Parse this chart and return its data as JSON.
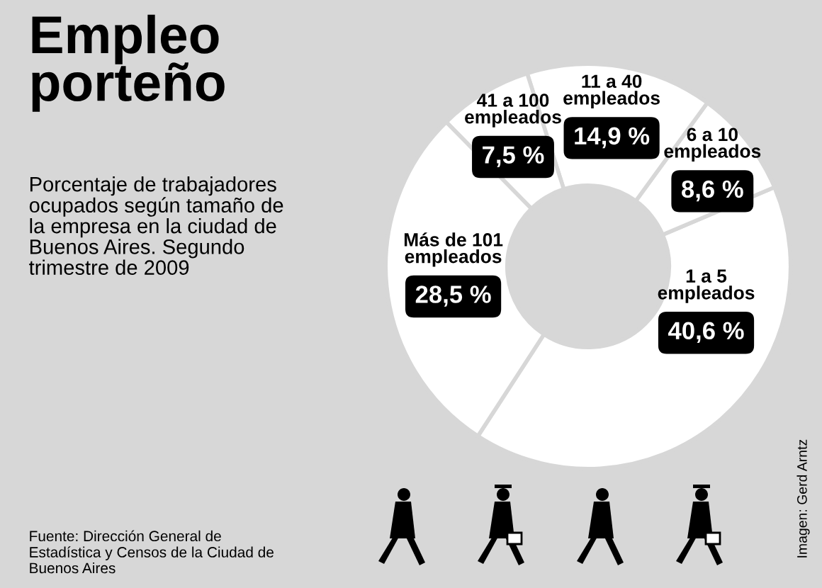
{
  "chart_data": {
    "type": "donut",
    "title": "Empleo porteño",
    "subtitle": "Porcentaje de trabajadores ocupados según tamaño de la empresa en la ciudad de Buenos Aires. Segundo trimestre de 2009",
    "categories": [
      "1 a 5 empleados",
      "6 a 10 empleados",
      "11 a 40 empleados",
      "41 a 100 empleados",
      "Más de 101 empleados"
    ],
    "values": [
      40.6,
      8.6,
      14.9,
      7.5,
      28.5
    ],
    "value_labels": [
      "40,6 %",
      "8,6 %",
      "14,9 %",
      "7,5 %",
      "28,5 %"
    ],
    "colors": [
      "#ffffff",
      "#ffffff",
      "#ffffff",
      "#ffffff",
      "#ffffff"
    ],
    "annotations": [
      "Fuente: Dirección General de Estadística y Censos de la Ciudad de Buenos Aires",
      "Imagen: Gerd Arntz"
    ],
    "legend": false
  }
}
